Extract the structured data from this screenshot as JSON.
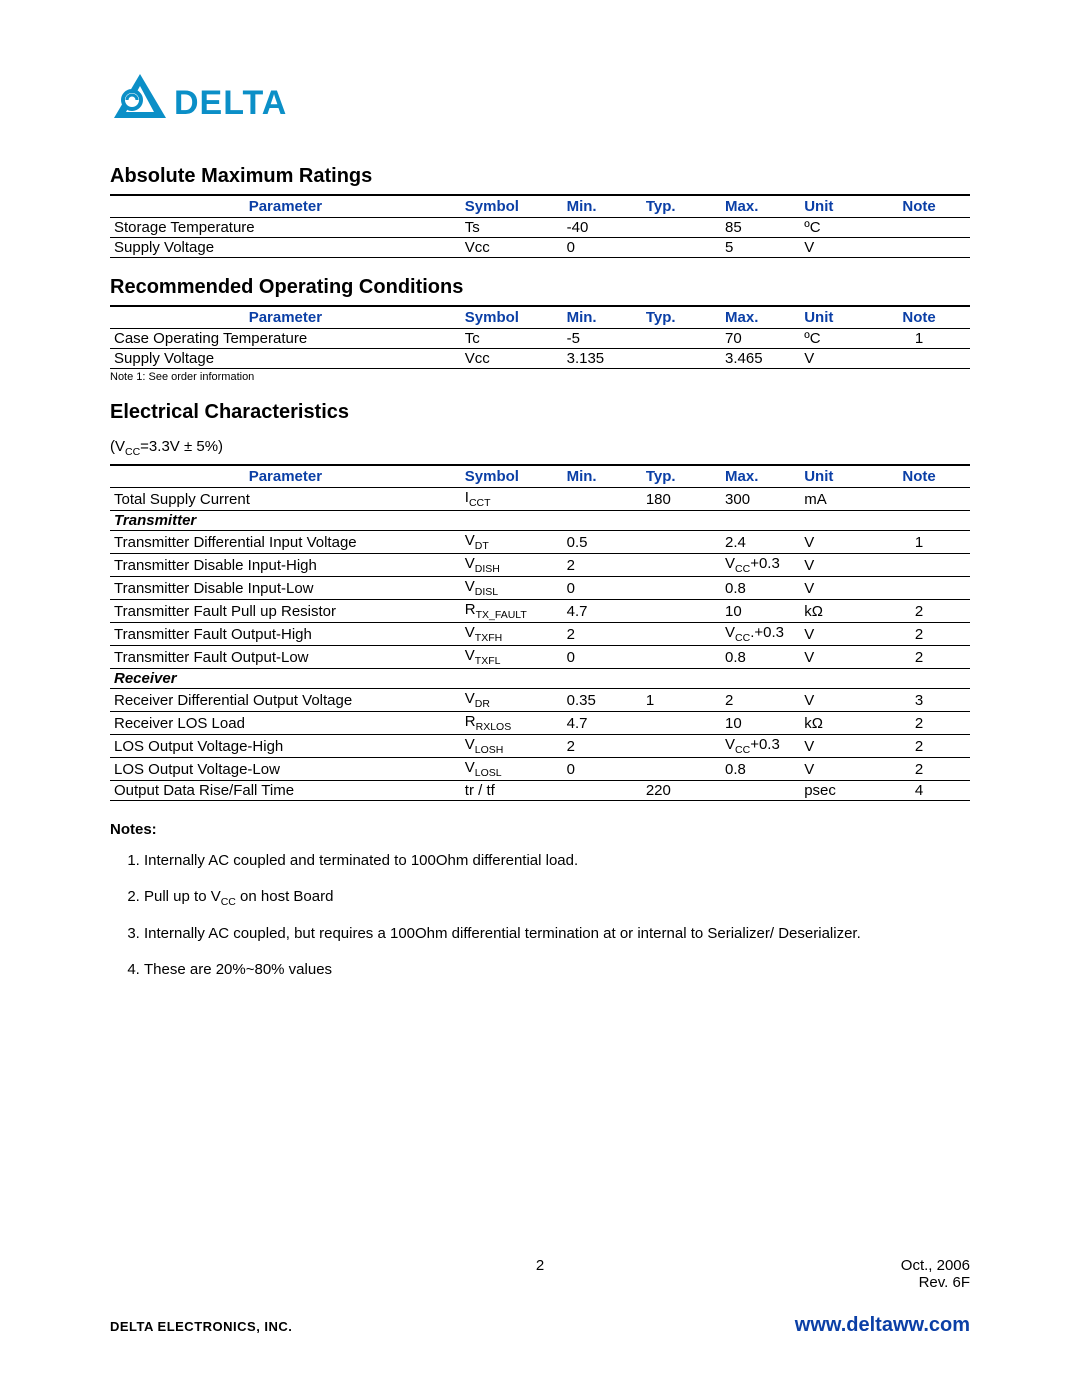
{
  "brand": {
    "name": "DELTA",
    "logo_color": "#0b8fc7"
  },
  "colors": {
    "header_blue": "#0b3fa6",
    "text": "#000000",
    "background": "#ffffff"
  },
  "section1": {
    "title": "Absolute Maximum Ratings",
    "headers": [
      "Parameter",
      "Symbol",
      "Min.",
      "Typ.",
      "Max.",
      "Unit",
      "Note"
    ],
    "rows": [
      {
        "parameter": "Storage Temperature",
        "symbol": "Ts",
        "min": "-40",
        "typ": "",
        "max": "85",
        "unit": "ºC",
        "note": ""
      },
      {
        "parameter": "Supply Voltage",
        "symbol": "Vcc",
        "min": "0",
        "typ": "",
        "max": "5",
        "unit": "V",
        "note": ""
      }
    ]
  },
  "section2": {
    "title": "Recommended Operating Conditions",
    "headers": [
      "Parameter",
      "Symbol",
      "Min.",
      "Typ.",
      "Max.",
      "Unit",
      "Note"
    ],
    "rows": [
      {
        "parameter": "Case Operating Temperature",
        "symbol": "Tc",
        "min": "-5",
        "typ": "",
        "max": "70",
        "unit": "ºC",
        "note": "1"
      },
      {
        "parameter": "Supply Voltage",
        "symbol": "Vcc",
        "min": "3.135",
        "typ": "",
        "max": "3.465",
        "unit": "V",
        "note": ""
      }
    ],
    "footnote": "Note 1: See order information"
  },
  "section3": {
    "title": "Electrical Characteristics",
    "condition_prefix": "(V",
    "condition_sub": "CC",
    "condition_suffix": "=3.3V ± 5%)",
    "headers": [
      "Parameter",
      "Symbol",
      "Min.",
      "Typ.",
      "Max.",
      "Unit",
      "Note"
    ],
    "rows": [
      {
        "parameter": "Total Supply Current",
        "symbol_main": "I",
        "symbol_sub": "CCT",
        "min": "",
        "typ": "180",
        "max": "300",
        "unit": "mA",
        "note": ""
      }
    ],
    "tx_label": "Transmitter",
    "tx_rows": [
      {
        "parameter": "Transmitter Differential Input Voltage",
        "symbol_main": "V",
        "symbol_sub": "DT",
        "min": "0.5",
        "typ": "",
        "max": "2.4",
        "unit": "V",
        "note": "1"
      },
      {
        "parameter": "Transmitter Disable Input-High",
        "symbol_main": "V",
        "symbol_sub": "DISH",
        "min": "2",
        "typ": "",
        "max_pre": "V",
        "max_sub": "CC",
        "max_post": "+0.3",
        "unit": "V",
        "note": ""
      },
      {
        "parameter": "Transmitter Disable Input-Low",
        "symbol_main": "V",
        "symbol_sub": "DISL",
        "min": "0",
        "typ": "",
        "max": "0.8",
        "unit": "V",
        "note": ""
      },
      {
        "parameter": "Transmitter Fault Pull up Resistor",
        "symbol_main": "R",
        "symbol_sub": "TX_FAULT",
        "min": "4.7",
        "typ": "",
        "max": "10",
        "unit": "kΩ",
        "note": "2"
      },
      {
        "parameter": "Transmitter Fault Output-High",
        "symbol_main": "V",
        "symbol_sub": "TXFH",
        "min": "2",
        "typ": "",
        "max_pre": "V",
        "max_sub": "CC",
        "max_post": ".+0.3",
        "unit": "V",
        "note": "2"
      },
      {
        "parameter": "Transmitter Fault Output-Low",
        "symbol_main": "V",
        "symbol_sub": "TXFL",
        "min": "0",
        "typ": "",
        "max": "0.8",
        "unit": "V",
        "note": "2"
      }
    ],
    "rx_label": "Receiver",
    "rx_rows": [
      {
        "parameter": "Receiver Differential Output Voltage",
        "symbol_main": "V",
        "symbol_sub": "DR",
        "min": "0.35",
        "typ": "1",
        "max": "2",
        "unit": "V",
        "note": "3"
      },
      {
        "parameter": "Receiver LOS Load",
        "symbol_main": "R",
        "symbol_sub": "RXLOS",
        "min": "4.7",
        "typ": "",
        "max": "10",
        "unit": "kΩ",
        "note": "2"
      },
      {
        "parameter": "LOS Output Voltage-High",
        "symbol_main": "V",
        "symbol_sub": "LOSH",
        "min": "2",
        "typ": "",
        "max_pre": "V",
        "max_sub": "CC",
        "max_post": "+0.3",
        "unit": "V",
        "note": "2"
      },
      {
        "parameter": "LOS Output Voltage-Low",
        "symbol_main": "V",
        "symbol_sub": "LOSL",
        "min": "0",
        "typ": "",
        "max": "0.8",
        "unit": "V",
        "note": "2"
      },
      {
        "parameter": "Output Data Rise/Fall Time",
        "symbol_plain": "tr / tf",
        "min": "",
        "typ": "220",
        "max": "",
        "unit": "psec",
        "note": "4"
      }
    ]
  },
  "notes": {
    "heading": "Notes:",
    "items": [
      {
        "text": "Internally AC coupled and terminated to 100Ohm differential load."
      },
      {
        "pre": "Pull up to V",
        "sub": "CC",
        "post": " on host Board"
      },
      {
        "text": "Internally AC coupled, but requires a 100Ohm differential termination at or internal to Serializer/ Deserializer."
      },
      {
        "text": "These are 20%~80% values"
      }
    ]
  },
  "footer": {
    "page": "2",
    "date": "Oct.,  2006",
    "rev": "Rev. 6F",
    "company": "DELTA ELECTRONICS, INC.",
    "url": "www.deltaww.com"
  }
}
